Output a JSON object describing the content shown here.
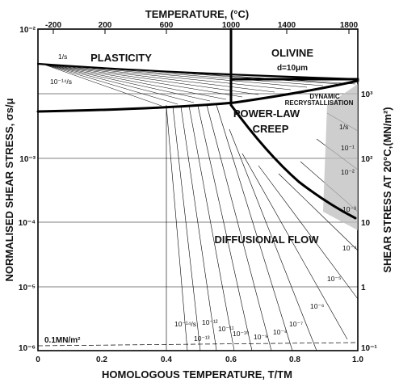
{
  "chart_data": {
    "type": "deformation-mechanism-map",
    "title_top": "TEMPERATURE, (°C)",
    "title_material": "OLIVINE",
    "title_grain": "d=10μm",
    "xlabel": "HOMOLOGOUS TEMPERATURE, T/TM",
    "ylabel_left": "NORMALISED SHEAR STRESS, σs/μ",
    "ylabel_right": "SHEAR STRESS AT 20°C,(MN/m²)",
    "x_ticks": [
      "0",
      "0.2",
      "0.4",
      "0.6",
      "0.8",
      "1.0"
    ],
    "top_ticks": [
      "-200",
      "200",
      "600",
      "1000",
      "1400",
      "1800"
    ],
    "left_ticks": [
      "10⁻²",
      "10⁻³",
      "10⁻⁴",
      "10⁻⁵",
      "10⁻⁶"
    ],
    "right_ticks": [
      "10³",
      "10²",
      "10",
      "1",
      "10⁻¹"
    ],
    "xlim": [
      0,
      1.0
    ],
    "ylim_log10": [
      -6,
      -2
    ],
    "regions": {
      "plasticity": "PLASTICITY",
      "power_law": "POWER-LAW",
      "creep": "CREEP",
      "diffusional": "DIFFUSIONAL FLOW",
      "dynamic": "DYNAMIC",
      "recryst": "RECRYSTALLISATION",
      "stress_note": "0.1MN/m²"
    },
    "strain_rate_labels": {
      "top_1": "1/s",
      "top_2": "10⁻¹⁴/s",
      "right_1": "1/s",
      "right_2": "10⁻¹",
      "right_3": "10⁻²",
      "right_4": "10⁻³",
      "mid_4": "10⁻⁴",
      "mid_5": "10⁻⁵",
      "mid_6": "10⁻⁶",
      "low_7": "10⁻⁷",
      "low_8": "10⁻⁸",
      "low_9": "10⁻⁹",
      "low_10": "10⁻¹⁰",
      "low_11": "10⁻¹¹",
      "low_12": "10⁻¹²",
      "low_13": "10⁻¹³",
      "low_14": "10⁻¹⁴/s"
    }
  }
}
